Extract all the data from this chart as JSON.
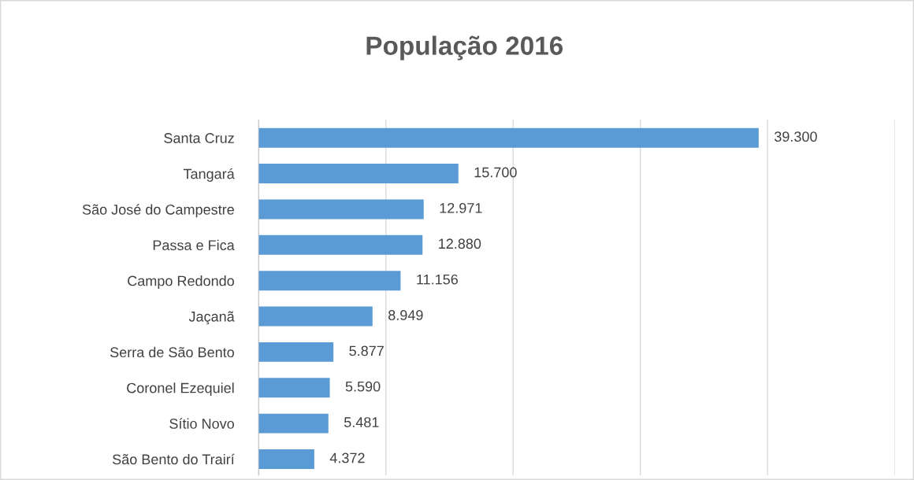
{
  "chart_data": {
    "type": "bar",
    "orientation": "horizontal",
    "title": "População 2016",
    "categories": [
      "Santa Cruz",
      "Tangará",
      "São José do Campestre",
      "Passa e Fica",
      "Campo Redondo",
      "Jaçanã",
      "Serra de São Bento",
      "Coronel Ezequiel",
      "Sítio Novo",
      "São Bento do Trairí"
    ],
    "values": [
      39300,
      15700,
      12971,
      12880,
      11156,
      8949,
      5877,
      5590,
      5481,
      4372
    ],
    "value_labels": [
      "39.300",
      "15.700",
      "12.971",
      "12.880",
      "11.156",
      "8.949",
      "5.877",
      "5.590",
      "5.481",
      "4.372"
    ],
    "color": "#5b9bd5",
    "xlim": [
      0,
      50000
    ],
    "xticks": [
      {
        "value": 0,
        "label": null
      },
      {
        "value": 10000,
        "label": null
      },
      {
        "value": 20000,
        "label": null
      },
      {
        "value": 30000,
        "label": null
      },
      {
        "value": 40000,
        "label": null
      },
      {
        "value": 50000,
        "label": null
      }
    ],
    "tick_labels": "y",
    "grid": "x"
  }
}
